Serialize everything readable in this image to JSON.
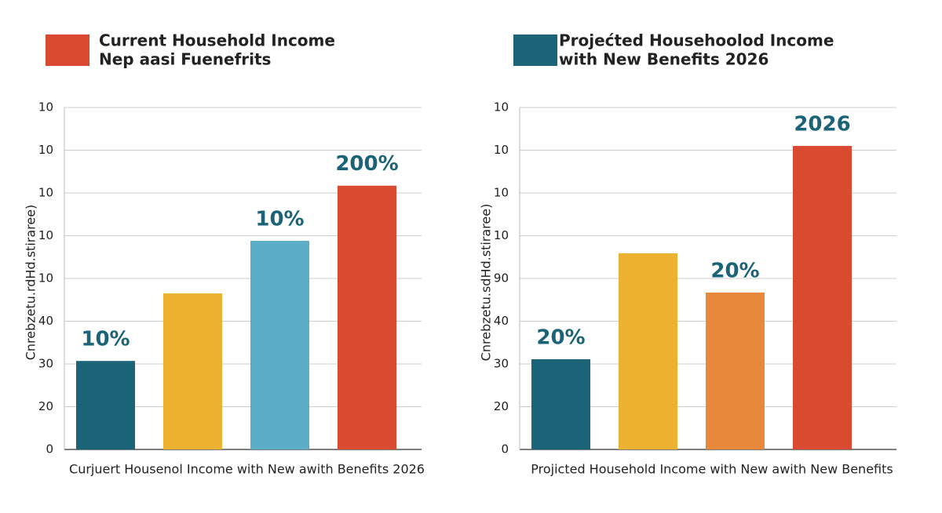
{
  "chart_data": [
    {
      "type": "bar",
      "legend_lines": [
        "Current  Household Income",
        "Nep aasi Fuenefrits"
      ],
      "legend_color": "#d94a30",
      "x_label": "Curjuert Housenol  Income  with  New awith Benefits  2026",
      "y_label": "Cnrebzetu.rdHd.stiraree)",
      "categories": [
        null,
        null,
        null,
        null
      ],
      "values": [
        2.07,
        3.65,
        4.88,
        6.17
      ],
      "colors": [
        "#1b6478",
        "#ecb22f",
        "#5aaec8",
        "#d94a30"
      ],
      "annotations": [
        {
          "text": "10%",
          "category": 0
        },
        {
          "text": "10%",
          "category": 2
        },
        {
          "text": "200%",
          "category": 3
        }
      ],
      "ylim": [
        0,
        8
      ],
      "yticks": [
        {
          "value": 0,
          "label": "0"
        },
        {
          "value": 1,
          "label": "20"
        },
        {
          "value": 2,
          "label": "30"
        },
        {
          "value": 3,
          "label": "40"
        },
        {
          "value": 4,
          "label": "10"
        },
        {
          "value": 5,
          "label": "10"
        },
        {
          "value": 6,
          "label": "10"
        },
        {
          "value": 7,
          "label": "10"
        },
        {
          "value": 8,
          "label": "10"
        }
      ],
      "grid": true
    },
    {
      "type": "bar",
      "legend_lines": [
        "Projećted Househoolod Income",
        "with New Benefits 2026"
      ],
      "legend_color": "#1b6478",
      "x_label": "Projicted Household Income with  New awith New  Benefits",
      "y_label": "Cnrebzetu.sdHd.stiraree)",
      "categories": [
        null,
        null,
        null,
        null
      ],
      "values": [
        2.11,
        4.59,
        3.67,
        7.1
      ],
      "colors": [
        "#1b6478",
        "#ecb22f",
        "#e8883a",
        "#d94a30"
      ],
      "annotations": [
        {
          "text": "20%",
          "category": 0
        },
        {
          "text": "20%",
          "category": 2
        },
        {
          "text": "2026",
          "category": 3
        }
      ],
      "ylim": [
        0,
        8
      ],
      "yticks": [
        {
          "value": 0,
          "label": "0"
        },
        {
          "value": 1,
          "label": "20"
        },
        {
          "value": 2,
          "label": "30"
        },
        {
          "value": 3,
          "label": "40"
        },
        {
          "value": 4,
          "label": "90"
        },
        {
          "value": 5,
          "label": "10"
        },
        {
          "value": 6,
          "label": "10"
        },
        {
          "value": 7,
          "label": "10"
        },
        {
          "value": 8,
          "label": "10"
        }
      ],
      "grid": true
    }
  ]
}
